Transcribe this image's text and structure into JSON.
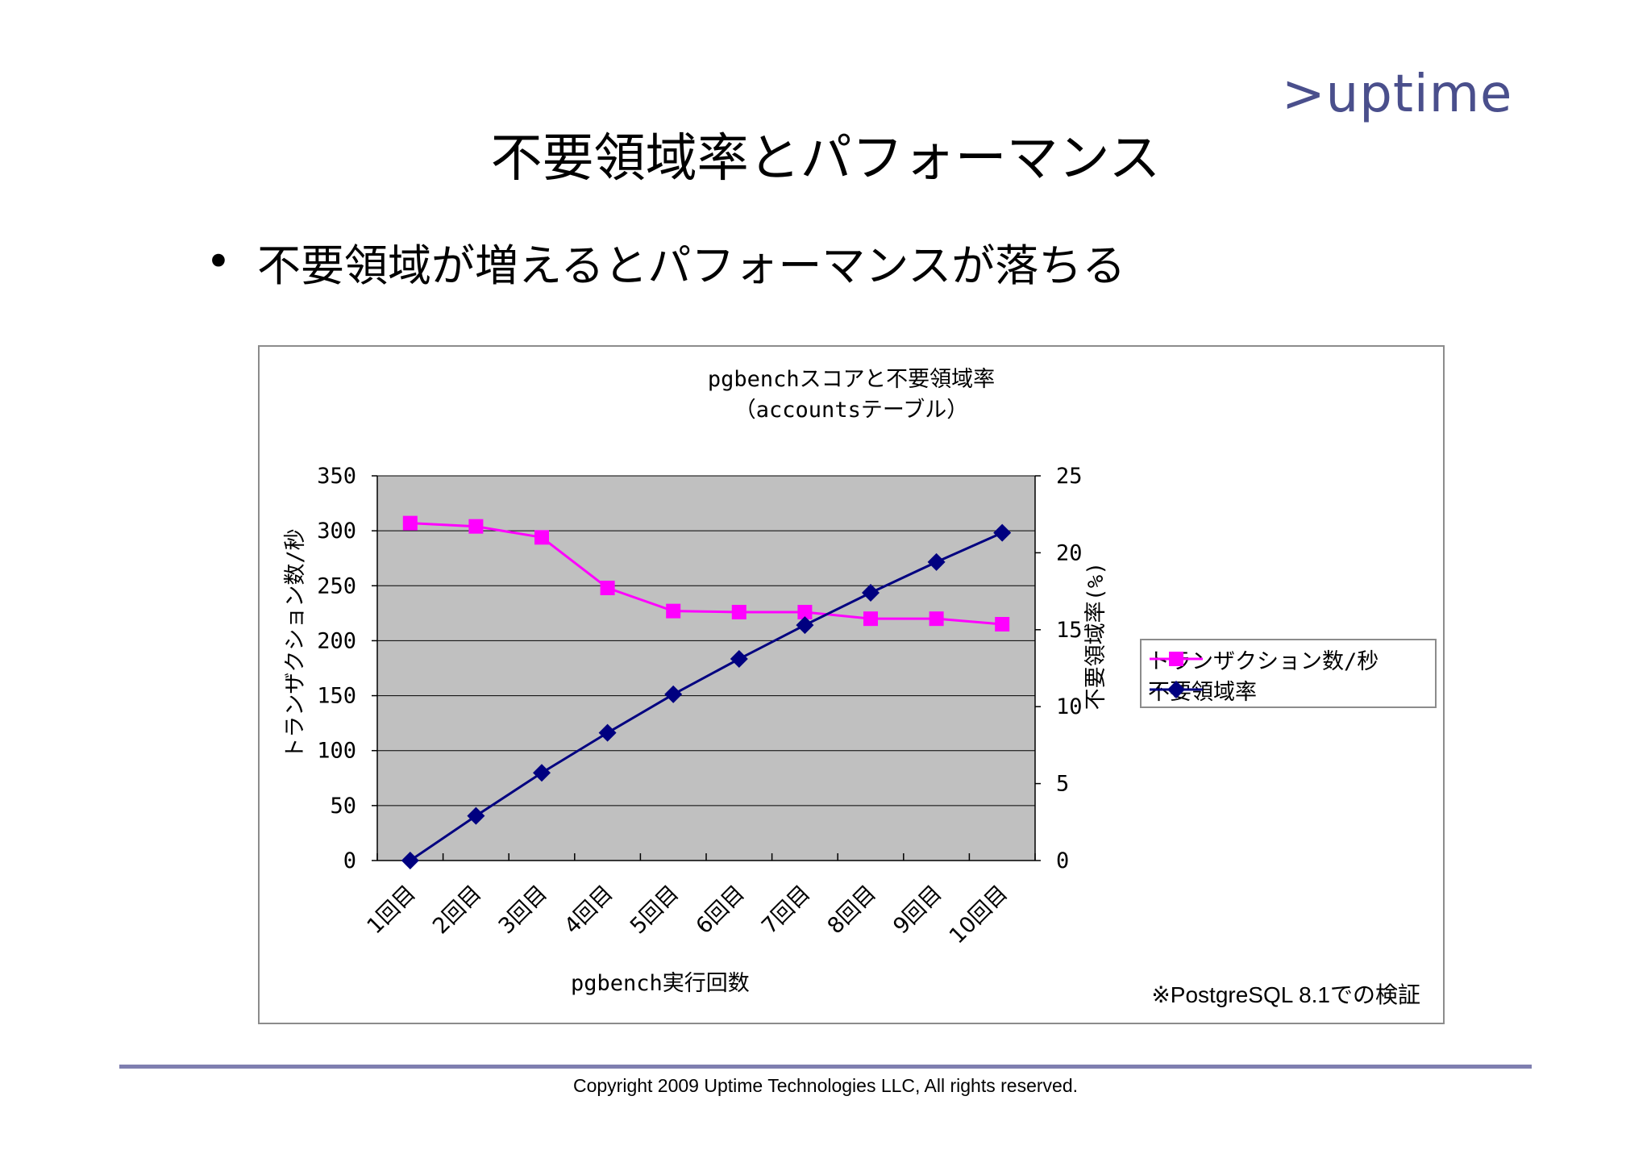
{
  "logo": ">uptime",
  "slide_title": "不要領域率とパフォーマンス",
  "bullet": {
    "symbol": "•",
    "text": "不要領域が増えるとパフォーマンスが落ちる"
  },
  "footnote": "※PostgreSQL 8.1での検証",
  "copyright": "Copyright 2009 Uptime Technologies LLC, All rights reserved.",
  "colors": {
    "tps_series": "#ff00ff",
    "ratio_series": "#000080",
    "plot_background": "#c0c0c0",
    "rule": "#7f7fb0"
  },
  "chart_data": {
    "type": "line",
    "title": "pgbenchスコアと不要領域率",
    "subtitle": "（accountsテーブル）",
    "xlabel": "pgbench実行回数",
    "ylabel": "トランザクション数/秒",
    "y2label": "不要領域率(%)",
    "categories": [
      "1回目",
      "2回目",
      "3回目",
      "4回目",
      "5回目",
      "6回目",
      "7回目",
      "8回目",
      "9回目",
      "10回目"
    ],
    "ylim": [
      0,
      350
    ],
    "yticks": [
      "0",
      "50",
      "100",
      "150",
      "200",
      "250",
      "300",
      "350"
    ],
    "y2lim": [
      0,
      25
    ],
    "y2ticks": [
      "0",
      "5",
      "10",
      "15",
      "20",
      "25"
    ],
    "grid": true,
    "legend_position": "right",
    "series": [
      {
        "name": "トランザクション数/秒",
        "axis": "left",
        "marker": "square",
        "values": [
          307,
          304,
          294,
          248,
          227,
          226,
          226,
          220,
          220,
          215
        ]
      },
      {
        "name": "不要領域率",
        "axis": "right",
        "marker": "diamond",
        "values": [
          0,
          2.9,
          5.7,
          8.3,
          10.8,
          13.1,
          15.3,
          17.4,
          19.4,
          21.3
        ]
      }
    ]
  }
}
